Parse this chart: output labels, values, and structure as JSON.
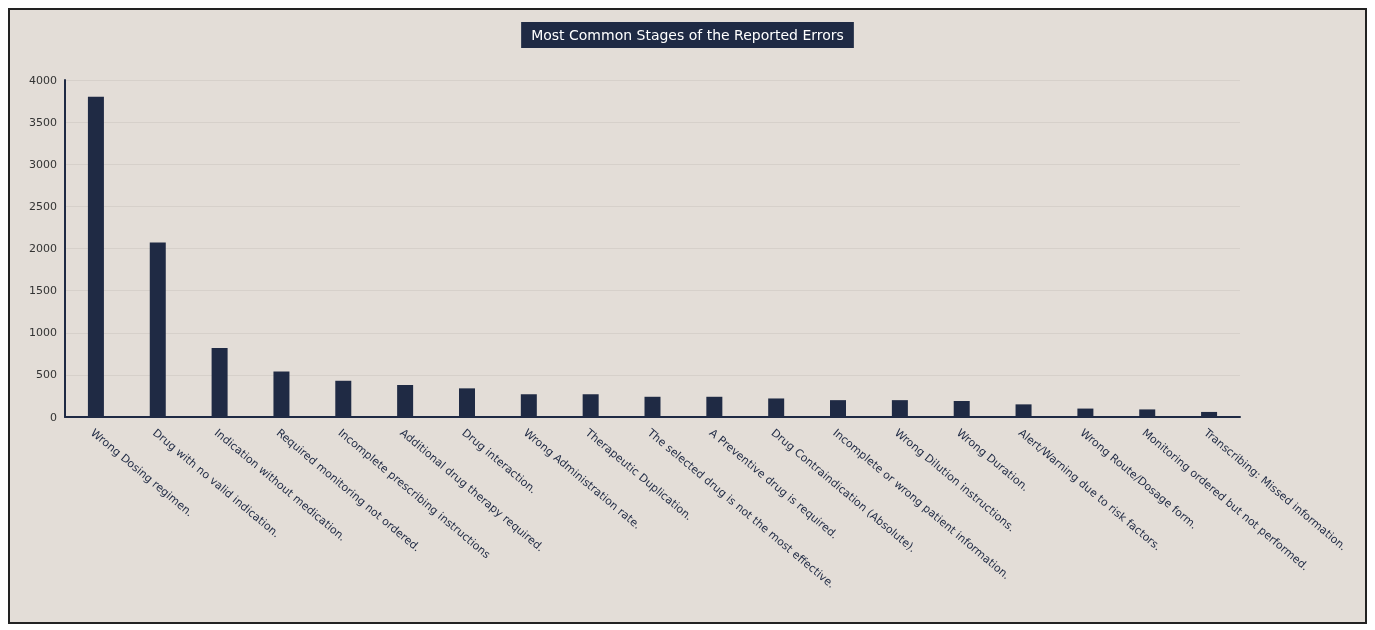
{
  "chart_data": {
    "type": "bar",
    "title": "Most Common Stages of the Reported Errors",
    "categories": [
      "Wrong Dosing regimen.",
      "Drug with no valid indication.",
      "Indication without medication.",
      "Required monitoring not ordered.",
      "Incomplete prescribing instructions",
      "Additional drug therapy required.",
      "Drug interaction.",
      "Wrong Administration rate.",
      "Therapeutic Duplication.",
      "The selected drug is not the most effective.",
      "A Preventive drug is required.",
      "Drug Contraindication (Absolute).",
      "Incomplete or wrong patient information.",
      "Wrong Dilution instructions.",
      "Wrong Duration.",
      "Alert/Warning due to risk factors.",
      "Wrong Route/Dosage form.",
      "Monitoring ordered but not performed.",
      "Transcribing: Missed information."
    ],
    "values": [
      3800,
      2070,
      820,
      540,
      430,
      380,
      340,
      270,
      270,
      240,
      240,
      220,
      200,
      200,
      190,
      150,
      100,
      90,
      60
    ],
    "color": "#1f2a44",
    "ylim": [
      0,
      4000
    ],
    "yticks": [
      0,
      500,
      1000,
      1500,
      2000,
      2500,
      3000,
      3500,
      4000
    ],
    "grid": "y"
  }
}
